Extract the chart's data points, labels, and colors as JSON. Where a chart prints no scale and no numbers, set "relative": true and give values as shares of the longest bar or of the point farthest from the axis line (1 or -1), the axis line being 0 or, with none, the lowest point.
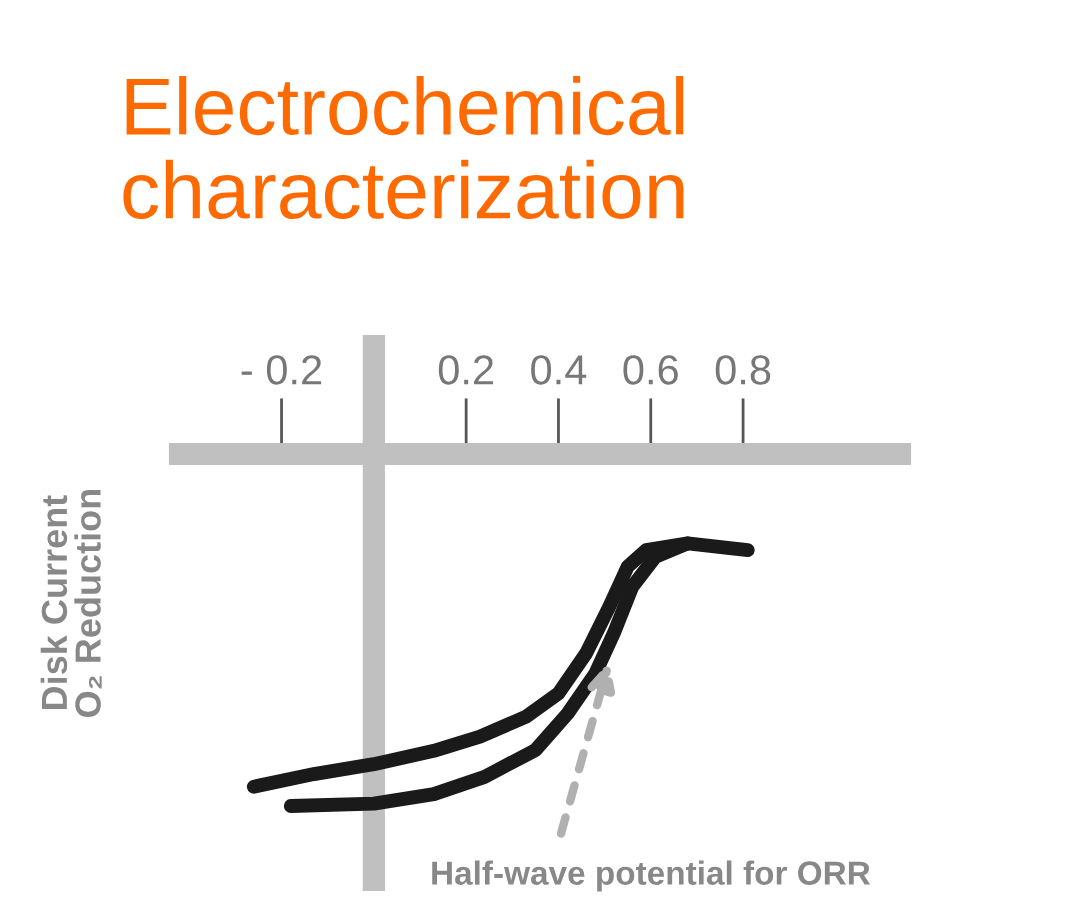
{
  "chart_data": {
    "type": "line",
    "title": "Electrochemical\ncharacterization",
    "ylabel": "Disk Current\nO₂ Reduction",
    "relative": true,
    "xlim": [
      -0.42,
      1.14
    ],
    "ref_lines": [
      {
        "axis": "x",
        "value": 0,
        "color": "#c0c0c0"
      }
    ],
    "xticks": [
      {
        "value": -0.2,
        "label": "- 0.2"
      },
      0.2,
      0.4,
      0.6,
      0.8
    ],
    "series": [
      {
        "color": "#1a1a1a",
        "x": [
          -0.26,
          -0.13,
          0.0,
          0.13,
          0.23,
          0.33,
          0.4,
          0.46,
          0.51,
          0.55,
          0.59,
          0.68,
          0.81
        ],
        "values": [
          -0.945,
          -0.909,
          -0.881,
          -0.843,
          -0.803,
          -0.746,
          -0.68,
          -0.566,
          -0.434,
          -0.32,
          -0.273,
          -0.254,
          -0.273
        ]
      },
      {
        "color": "#1a1a1a",
        "x": [
          -0.18,
          0.0,
          0.13,
          0.24,
          0.35,
          0.42,
          0.48,
          0.52,
          0.56,
          0.61,
          0.68
        ],
        "values": [
          -1.0,
          -0.993,
          -0.966,
          -0.917,
          -0.841,
          -0.737,
          -0.623,
          -0.509,
          -0.377,
          -0.292,
          -0.254
        ]
      }
    ],
    "annotations": [
      {
        "text": "Half-wave potential for ORR",
        "x": 0.51,
        "y": -0.59
      }
    ],
    "grid": false,
    "legend": false,
    "marker": "none",
    "line_style": "solid"
  }
}
